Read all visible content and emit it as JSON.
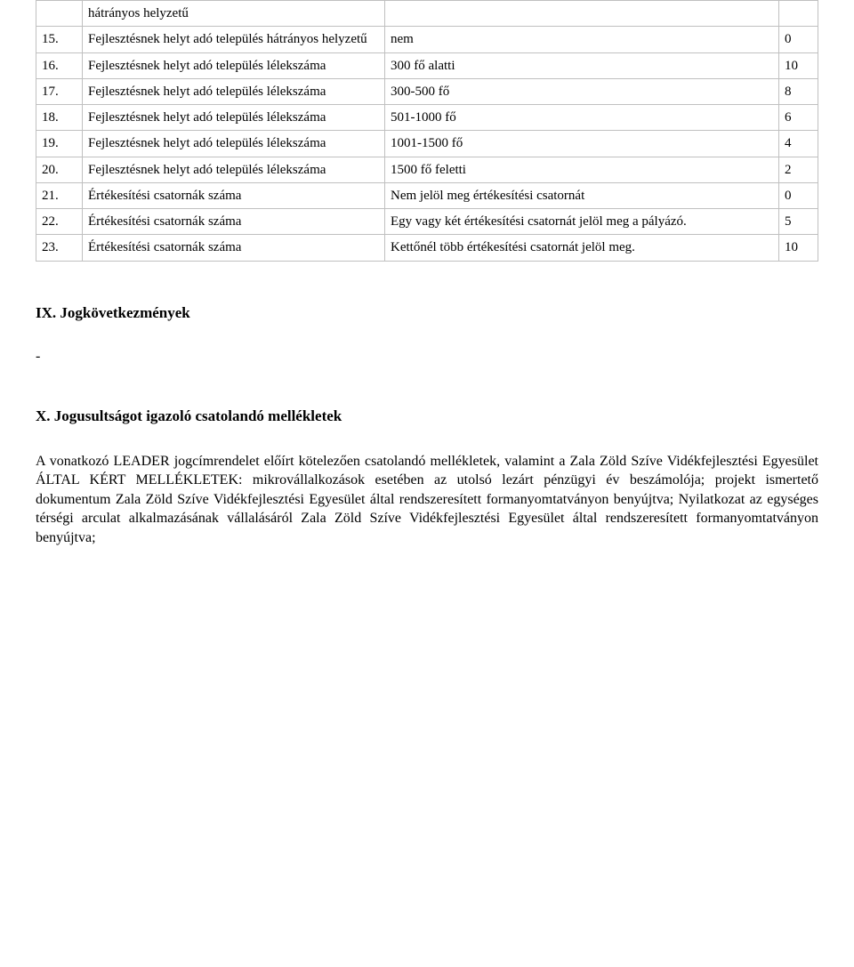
{
  "table": {
    "rows": [
      {
        "num": "",
        "desc": "hátrányos helyzetű",
        "val": "",
        "score": ""
      },
      {
        "num": "15.",
        "desc": "Fejlesztésnek helyt adó település hátrányos helyzetű",
        "val": "nem",
        "score": "0"
      },
      {
        "num": "16.",
        "desc": "Fejlesztésnek helyt adó település lélekszáma",
        "val": "300 fő alatti",
        "score": "10"
      },
      {
        "num": "17.",
        "desc": "Fejlesztésnek helyt adó település lélekszáma",
        "val": "300-500 fő",
        "score": "8"
      },
      {
        "num": "18.",
        "desc": "Fejlesztésnek helyt adó település lélekszáma",
        "val": "501-1000 fő",
        "score": "6"
      },
      {
        "num": "19.",
        "desc": "Fejlesztésnek helyt adó település lélekszáma",
        "val": "1001-1500 fő",
        "score": "4"
      },
      {
        "num": "20.",
        "desc": "Fejlesztésnek helyt adó település lélekszáma",
        "val": "1500 fő feletti",
        "score": "2"
      },
      {
        "num": "21.",
        "desc": "Értékesítési csatornák száma",
        "val": "Nem jelöl meg értékesítési csatornát",
        "score": "0"
      },
      {
        "num": "22.",
        "desc": "Értékesítési csatornák száma",
        "val": "Egy vagy két értékesítési csatornát jelöl meg a pályázó.",
        "score": "5"
      },
      {
        "num": "23.",
        "desc": "Értékesítési csatornák száma",
        "val": "Kettőnél több értékesítési csatornát jelöl meg.",
        "score": "10"
      }
    ]
  },
  "section_ix": {
    "heading": "IX. Jogkövetkezmények",
    "dash": "-"
  },
  "section_x": {
    "heading": "X. Jogusultságot igazoló csatolandó mellékletek",
    "paragraph": "A vonatkozó LEADER jogcímrendelet előírt kötelezően csatolandó mellékletek, valamint a Zala Zöld Szíve Vidékfejlesztési Egyesület ÁLTAL KÉRT MELLÉKLETEK: mikrovállalkozások esetében az utolsó lezárt pénzügyi év beszámolója; projekt ismertető dokumentum Zala Zöld Szíve Vidékfejlesztési Egyesület által rendszeresített formanyomtatványon benyújtva; Nyilatkozat az egységes térségi arculat alkalmazásának vállalásáról Zala Zöld Szíve Vidékfejlesztési Egyesület által rendszeresített formanyomtatványon benyújtva;"
  }
}
